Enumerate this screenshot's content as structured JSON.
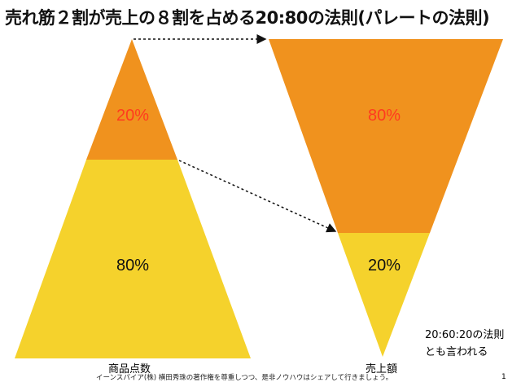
{
  "title": "売れ筋２割が売上の８割を占める20:80の法則(パレートの法則)",
  "colors": {
    "orange": "#F0921E",
    "yellow": "#F5D22C",
    "red": "#FF3B1F"
  },
  "left_pyramid": {
    "label": "商品点数",
    "top_pct": "20%",
    "bottom_pct": "80%"
  },
  "right_pyramid": {
    "label": "売上額",
    "top_pct": "80%",
    "bottom_pct": "20%"
  },
  "note": {
    "line1": "20:60:20の法則",
    "line2": "とも言われる"
  },
  "footer": "イーンスパイア(株) 横田秀珠の著作権を尊重しつつ、是非ノウハウはシェアして行きましょう。",
  "page_number": "1"
}
